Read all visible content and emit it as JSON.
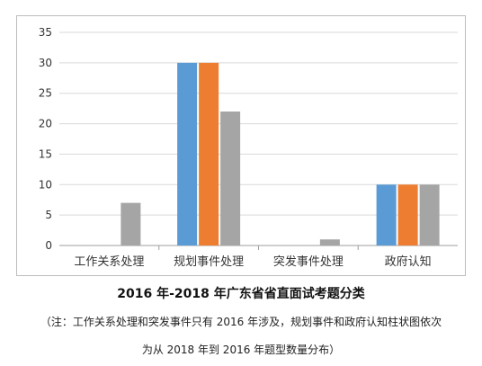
{
  "chart_data": {
    "type": "bar",
    "categories": [
      "工作关系处理",
      "规划事件处理",
      "突发事件处理",
      "政府认知"
    ],
    "series": [
      {
        "values": [
          0,
          30,
          0,
          10
        ],
        "color": "#5b9bd5"
      },
      {
        "values": [
          0,
          30,
          0,
          10
        ],
        "color": "#ed7d31"
      },
      {
        "values": [
          7,
          22,
          1,
          10
        ],
        "color": "#a5a5a5"
      }
    ],
    "ylim": [
      0,
      35
    ],
    "yticks": [
      0,
      5,
      10,
      15,
      20,
      25,
      30,
      35
    ],
    "grid": true,
    "legend": "none"
  },
  "caption": {
    "title": "2016 年-2018 年广东省省直面试考题分类",
    "note_line_1": "（注：工作关系处理和突发事件只有 2016 年涉及，规划事件和政府认知柱状图依次",
    "note_line_2": "为从 2018 年到 2016 年题型数量分布）"
  }
}
